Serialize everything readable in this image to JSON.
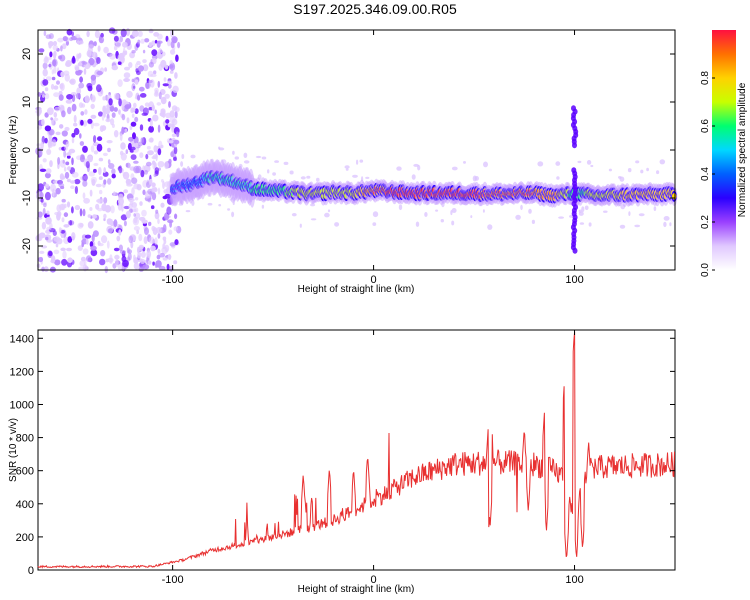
{
  "title": "S197.2025.346.09.00.R05",
  "chart_data": [
    {
      "type": "heatmap",
      "xlabel": "Height of straight line (km)",
      "ylabel": "Frequency (Hz)",
      "xlim": [
        -167,
        150
      ],
      "ylim": [
        -25,
        25
      ],
      "xticks": [
        -100,
        0,
        100
      ],
      "yticks": [
        20,
        10,
        0,
        -10,
        -20
      ],
      "colorbar": {
        "label": "Normalized spectral amplitude",
        "range": [
          0.0,
          1.0
        ],
        "ticks": [
          0.0,
          0.2,
          0.4,
          0.6,
          0.8
        ],
        "tick_labels": [
          "0.0",
          "0.2",
          "0.4",
          "0.6",
          "0.8"
        ],
        "colors": [
          "#ffffff",
          "#c8a0ff",
          "#7a00ff",
          "#0000ff",
          "#00c8ff",
          "#00ff64",
          "#c8ff00",
          "#ffd200",
          "#ff6e00",
          "#ff0a3c"
        ]
      },
      "ridge": {
        "x": [
          -100,
          -90,
          -80,
          -70,
          -60,
          -50,
          -40,
          -30,
          -20,
          -10,
          0,
          20,
          40,
          60,
          80,
          90,
          100,
          110,
          130,
          150
        ],
        "y": [
          -8,
          -7,
          -5.5,
          -6.5,
          -8,
          -8.5,
          -8.8,
          -9.2,
          -8.8,
          -9,
          -8.5,
          -9,
          -9,
          -9.2,
          -9,
          -9.5,
          -9,
          -9.5,
          -9.3,
          -9.2
        ],
        "amplitude": [
          0.25,
          0.35,
          0.45,
          0.45,
          0.5,
          0.55,
          0.6,
          0.65,
          0.6,
          0.7,
          0.9,
          0.95,
          0.95,
          0.9,
          0.9,
          0.85,
          0.5,
          0.65,
          0.8,
          0.75
        ]
      },
      "noise_region": [
        -167,
        -97
      ],
      "grid": false
    },
    {
      "type": "line",
      "xlabel": "Height of straight line (km)",
      "ylabel": "SNR (10 * v/v)",
      "xlim": [
        -167,
        150
      ],
      "ylim": [
        0,
        1450
      ],
      "xticks": [
        -100,
        0,
        100
      ],
      "yticks": [
        0,
        200,
        400,
        600,
        800,
        1000,
        1200,
        1400
      ],
      "color": "#e83030",
      "envelope": {
        "x": [
          -167,
          -110,
          -95,
          -80,
          -60,
          -40,
          -20,
          0,
          20,
          40,
          60,
          80,
          90,
          95,
          100,
          105,
          110,
          130,
          150
        ],
        "y": [
          20,
          22,
          60,
          120,
          170,
          230,
          300,
          420,
          560,
          640,
          650,
          640,
          600,
          560,
          300,
          580,
          620,
          630,
          640
        ]
      },
      "spikes": [
        {
          "x": -63,
          "y": 330
        },
        {
          "x": -53,
          "y": 300
        },
        {
          "x": -35,
          "y": 580
        },
        {
          "x": -22,
          "y": 620
        },
        {
          "x": -10,
          "y": 620
        },
        {
          "x": -3,
          "y": 700
        },
        {
          "x": 57,
          "y": 850
        },
        {
          "x": 75,
          "y": 860
        },
        {
          "x": 85,
          "y": 950
        },
        {
          "x": 95,
          "y": 1150
        },
        {
          "x": 100,
          "y": 1450
        },
        {
          "x": 107,
          "y": 780
        }
      ],
      "dips": [
        {
          "x": 58,
          "y": 260
        },
        {
          "x": 77,
          "y": 350
        },
        {
          "x": 86,
          "y": 230
        },
        {
          "x": 96,
          "y": 50
        },
        {
          "x": 101,
          "y": 60
        },
        {
          "x": 104,
          "y": 120
        }
      ],
      "grid": false
    }
  ]
}
